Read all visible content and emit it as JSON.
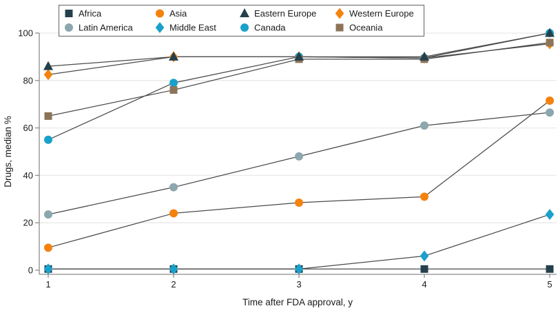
{
  "figure": {
    "title": "",
    "y_axis_label": "Drugs, median %",
    "x_axis_label": "Time after FDA approval, y",
    "y_ticks": [
      0,
      20,
      40,
      60,
      80,
      100
    ],
    "x_ticks": [
      1,
      2,
      3,
      4,
      5
    ]
  },
  "colors": {
    "dark": "#24404B",
    "orange": "#F5820D",
    "cyan": "#1AA1CB",
    "gray_blue": "#8CA7AD",
    "brown": "#8C7459",
    "line": "#4A4A4A",
    "grid": "#EAEAE8",
    "axis": "#8C8C8C",
    "text": "#1A1A1A",
    "legend_border": "#757575"
  },
  "chart_data": {
    "type": "line",
    "title": "",
    "xlabel": "Time after FDA approval, y",
    "ylabel": "Drugs, median %",
    "x": [
      1,
      2,
      3,
      4,
      5
    ],
    "xlim": [
      1,
      5
    ],
    "ylim": [
      0,
      100
    ],
    "grid": true,
    "legend_position": "top",
    "legend_rows": [
      [
        "Africa",
        "Asia",
        "Eastern Europe",
        "Western Europe"
      ],
      [
        "Latin America",
        "Middle East",
        "Canada",
        "Oceania"
      ]
    ],
    "series": [
      {
        "name": "Africa",
        "marker": "square",
        "color": "dark",
        "values": [
          0.5,
          0.5,
          0.5,
          0.5,
          0.5
        ]
      },
      {
        "name": "Latin America",
        "marker": "circle",
        "color": "gray_blue",
        "values": [
          23.5,
          35,
          48,
          61,
          66.5
        ]
      },
      {
        "name": "Asia",
        "marker": "circle",
        "color": "orange",
        "values": [
          9.5,
          24,
          28.5,
          31,
          71.5
        ]
      },
      {
        "name": "Middle East",
        "marker": "diamond",
        "color": "cyan",
        "values": [
          0.5,
          0.5,
          0.5,
          6,
          23.5
        ]
      },
      {
        "name": "Western Europe",
        "marker": "diamond",
        "color": "orange",
        "values": [
          82.5,
          90,
          90,
          89.5,
          95.5
        ]
      },
      {
        "name": "Canada",
        "marker": "circle",
        "color": "cyan",
        "values": [
          55,
          79,
          90,
          89.5,
          100
        ]
      },
      {
        "name": "Oceania",
        "marker": "square",
        "color": "brown",
        "values": [
          65,
          76,
          89,
          89,
          96
        ]
      },
      {
        "name": "Eastern Europe",
        "marker": "triangle",
        "color": "dark",
        "values": [
          86,
          90,
          90,
          90,
          100
        ]
      }
    ]
  }
}
